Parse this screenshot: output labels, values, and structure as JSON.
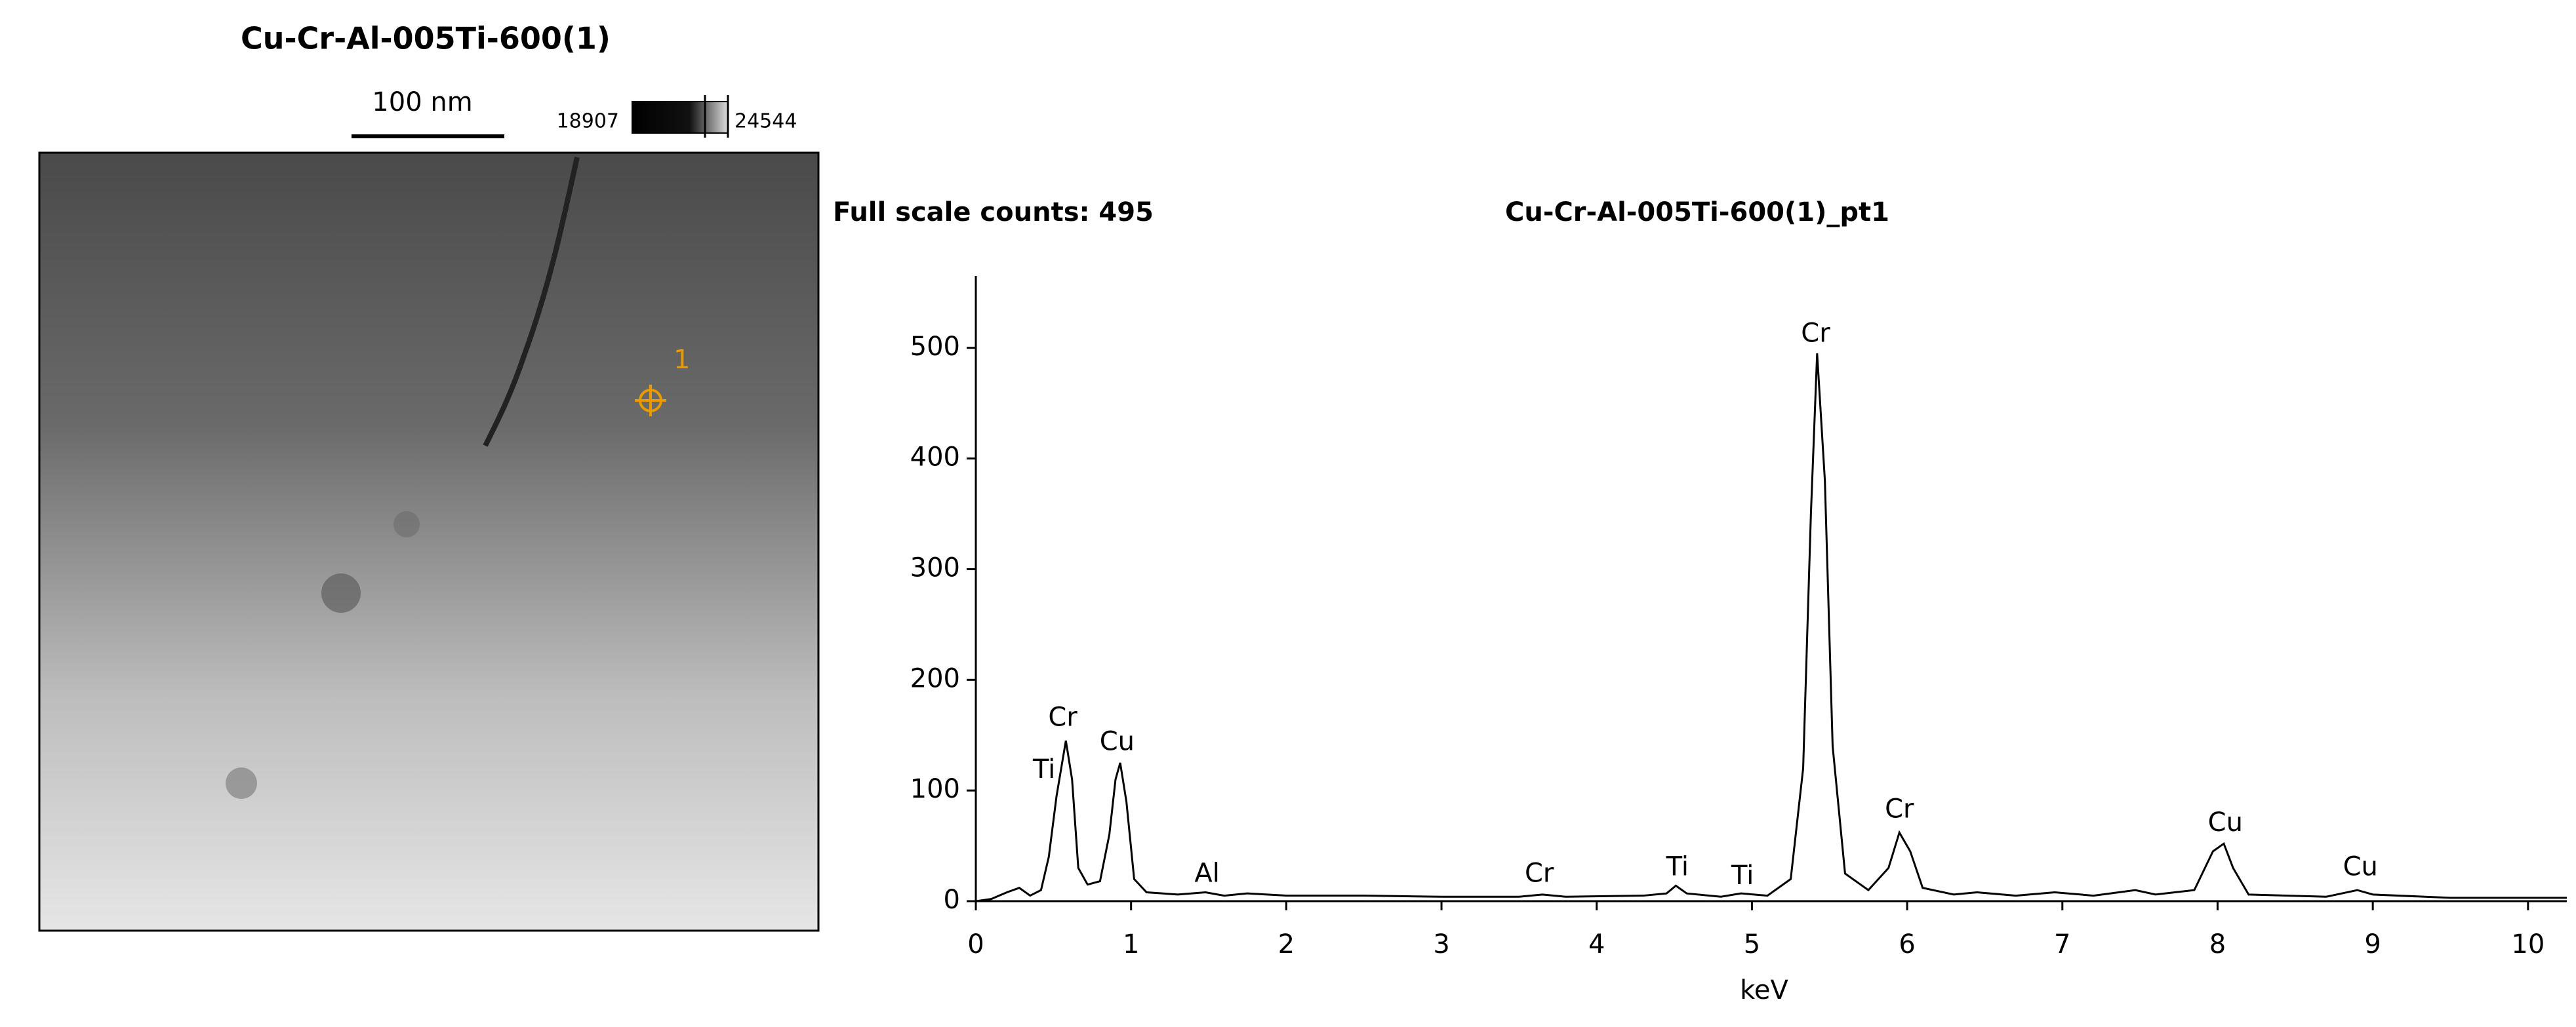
{
  "image": {
    "title": "Cu-Cr-Al-005Ti-600(1)",
    "scale_bar_label": "100 nm",
    "color_scale_min": "18907",
    "color_scale_max": "24544",
    "point_label": "1"
  },
  "chart_data": {
    "type": "line",
    "title": "Cu-Cr-Al-005Ti-600(1)_pt1",
    "subtitle": "Full scale counts: 495",
    "x_label": "keV",
    "x": [
      0,
      0.1,
      0.2,
      0.28,
      0.35,
      0.42,
      0.47,
      0.52,
      0.55,
      0.58,
      0.62,
      0.66,
      0.72,
      0.8,
      0.86,
      0.9,
      0.93,
      0.97,
      1.02,
      1.1,
      1.3,
      1.48,
      1.6,
      1.75,
      2.0,
      2.5,
      3.0,
      3.5,
      3.65,
      3.8,
      4.3,
      4.45,
      4.51,
      4.58,
      4.8,
      4.93,
      5.1,
      5.25,
      5.33,
      5.38,
      5.42,
      5.47,
      5.52,
      5.6,
      5.75,
      5.88,
      5.95,
      6.02,
      6.1,
      6.3,
      6.45,
      6.7,
      6.95,
      7.2,
      7.47,
      7.6,
      7.85,
      7.97,
      8.04,
      8.1,
      8.2,
      8.7,
      8.9,
      9.0,
      9.5,
      10.0,
      10.25
    ],
    "series": [
      {
        "name": "pt1",
        "color": "#000000",
        "values": [
          0,
          2,
          8,
          12,
          5,
          10,
          40,
          95,
          120,
          145,
          110,
          30,
          15,
          18,
          60,
          110,
          125,
          90,
          20,
          8,
          6,
          8,
          5,
          7,
          5,
          5,
          4,
          4,
          6,
          4,
          5,
          7,
          14,
          7,
          4,
          7,
          5,
          20,
          120,
          350,
          495,
          380,
          140,
          25,
          10,
          30,
          62,
          45,
          12,
          6,
          8,
          5,
          8,
          5,
          10,
          6,
          10,
          45,
          52,
          30,
          6,
          4,
          10,
          6,
          3,
          3,
          3
        ]
      }
    ],
    "annotations": [
      {
        "text": "Ti",
        "x": 0.44,
        "y": 118
      },
      {
        "text": "Cr",
        "x": 0.56,
        "y": 165
      },
      {
        "text": "Cu",
        "x": 0.91,
        "y": 143
      },
      {
        "text": "Al",
        "x": 1.49,
        "y": 24
      },
      {
        "text": "Cr",
        "x": 3.63,
        "y": 24
      },
      {
        "text": "Ti",
        "x": 4.52,
        "y": 30
      },
      {
        "text": "Ti",
        "x": 4.94,
        "y": 22
      },
      {
        "text": "Cr",
        "x": 5.41,
        "y": 512
      },
      {
        "text": "Cr",
        "x": 5.95,
        "y": 82
      },
      {
        "text": "Cu",
        "x": 8.05,
        "y": 70
      },
      {
        "text": "Cu",
        "x": 8.92,
        "y": 30
      }
    ],
    "xlim": [
      0,
      10.25
    ],
    "ylim": [
      0,
      565
    ],
    "xticks": [
      0,
      1,
      2,
      3,
      4,
      5,
      6,
      7,
      8,
      9,
      10
    ],
    "yticks": [
      0,
      100,
      200,
      300,
      400,
      500
    ]
  }
}
